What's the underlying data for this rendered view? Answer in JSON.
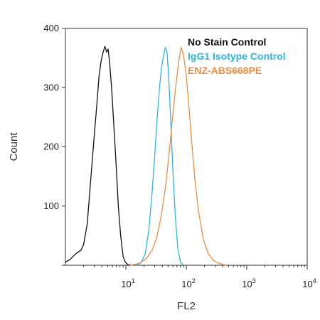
{
  "chart_data": {
    "type": "line",
    "title": "",
    "xlabel": "FL2",
    "ylabel": "Count",
    "x_scale": "log",
    "xlim": [
      1,
      10000
    ],
    "ylim": [
      0,
      400
    ],
    "x_ticks": [
      {
        "value": 10,
        "base": "10",
        "exp": "1"
      },
      {
        "value": 100,
        "base": "10",
        "exp": "2"
      },
      {
        "value": 1000,
        "base": "10",
        "exp": "3"
      },
      {
        "value": 10000,
        "base": "10",
        "exp": "4"
      }
    ],
    "y_ticks": [
      0,
      100,
      200,
      300,
      400
    ],
    "legend_position": "top-right",
    "grid": false,
    "series": [
      {
        "name": "No Stain Control",
        "color": "#111111",
        "x": [
          1,
          1.2,
          1.5,
          1.8,
          2.0,
          2.3,
          2.6,
          3.0,
          3.3,
          3.6,
          3.9,
          4.2,
          4.5,
          4.8,
          5.1,
          5.4,
          5.8,
          6.3,
          6.9,
          7.5,
          8.2,
          9.0,
          9.8,
          10.8,
          12
        ],
        "y": [
          5,
          10,
          20,
          25,
          35,
          70,
          140,
          220,
          270,
          320,
          345,
          360,
          370,
          360,
          365,
          340,
          300,
          240,
          170,
          100,
          50,
          15,
          5,
          1,
          0
        ]
      },
      {
        "name": "IgG1 Isotype Control",
        "color": "#29b6e8",
        "x": [
          15,
          18,
          21,
          24,
          27,
          30,
          33,
          36,
          39,
          42,
          45,
          48,
          51,
          55,
          60,
          66,
          72,
          80,
          90
        ],
        "y": [
          0,
          5,
          20,
          60,
          120,
          185,
          250,
          300,
          335,
          355,
          368,
          360,
          320,
          250,
          160,
          80,
          30,
          5,
          0
        ]
      },
      {
        "name": "ENZ-ABS668PE",
        "color": "#f08a3c",
        "x": [
          12,
          15,
          18,
          22,
          27,
          32,
          38,
          45,
          52,
          60,
          68,
          75,
          82,
          90,
          100,
          112,
          125,
          140,
          160,
          190,
          230,
          280,
          350,
          450
        ],
        "y": [
          0,
          2,
          5,
          12,
          25,
          45,
          80,
          130,
          190,
          255,
          310,
          345,
          368,
          355,
          320,
          260,
          200,
          140,
          90,
          45,
          20,
          8,
          3,
          0
        ]
      }
    ]
  }
}
